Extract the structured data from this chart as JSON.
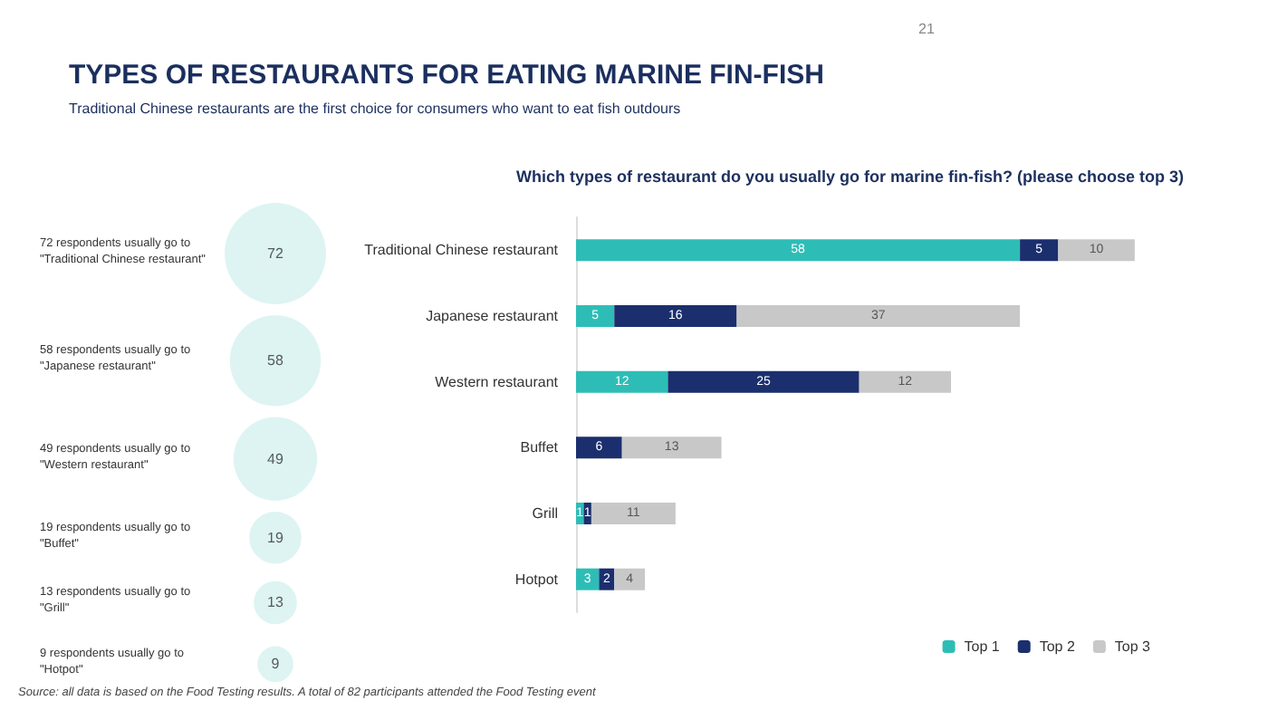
{
  "chart_data": [
    {
      "type": "other",
      "title": "TYPES OF RESTAURANTS FOR EATING MARINE FIN-FISH",
      "subtitle": "Traditional Chinese restaurants are the first choice for consumers who want to eat fish outdours",
      "categories": [
        "72 respondents usually go to \"Traditional Chinese restaurant\"",
        "58 respondents usually go to \"Japanese restaurant\"",
        "49 respondents usually go to \"Western restaurant\"",
        "19 respondents usually go to \"Buffet\"",
        "13 respondents usually go to \"Grill\"",
        "9 respondents usually go to \"Hotpot\""
      ],
      "values": [
        72,
        58,
        49,
        19,
        13,
        9
      ],
      "color": "#d5f1f0",
      "data_labels": true,
      "annotations": [
        "21",
        "Source: all data is based on the Food Testing results. A total of 82 participants attended the Food Testing event"
      ]
    },
    {
      "type": "bar",
      "orientation": "horizontal",
      "stacked": true,
      "title": "Which types of restaurant do you usually go for marine fin-fish? (please choose top 3)",
      "categories": [
        "Traditional Chinese restaurant",
        "Japanese restaurant",
        "Western restaurant",
        "Buffet",
        "Grill",
        "Hotpot"
      ],
      "series": [
        {
          "name": "Top 1",
          "color": "#2ebdb6",
          "values": [
            58,
            5,
            12,
            null,
            1,
            3
          ]
        },
        {
          "name": "Top 2",
          "color": "#1b2f6e",
          "values": [
            5,
            16,
            25,
            6,
            1,
            2
          ]
        },
        {
          "name": "Top 3",
          "color": "#c8c8c8",
          "values": [
            10,
            37,
            12,
            13,
            11,
            4
          ]
        }
      ],
      "data_labels": true,
      "legend": "bottom right",
      "grid": false
    }
  ]
}
